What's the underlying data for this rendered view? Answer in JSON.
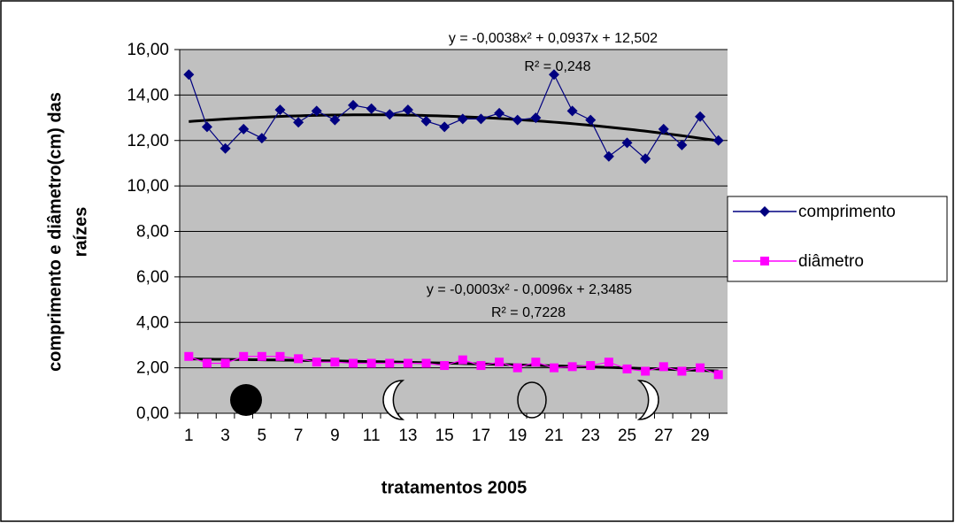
{
  "chart_data": {
    "type": "line",
    "ylabel": [
      "comprimento e diâmetro(cm) das",
      "raízes"
    ],
    "xlabel": "tratamentos 2005",
    "categories": [
      "1",
      null,
      "3",
      null,
      "5",
      null,
      "7",
      null,
      "9",
      null,
      "11",
      null,
      "13",
      null,
      "15",
      null,
      "17",
      null,
      "19",
      null,
      "21",
      null,
      "23",
      null,
      "25",
      null,
      "27",
      null,
      "29",
      null
    ],
    "series": [
      {
        "name": "comprimento",
        "color": "#000080",
        "marker": "diamond",
        "values": [
          14.9,
          12.6,
          11.65,
          12.5,
          12.1,
          13.35,
          12.8,
          13.3,
          12.9,
          13.55,
          13.4,
          13.15,
          13.35,
          12.85,
          12.6,
          12.95,
          12.95,
          13.2,
          12.9,
          13.0,
          14.9,
          13.3,
          12.9,
          11.3,
          11.9,
          11.2,
          12.5,
          11.8,
          13.05,
          12.0
        ]
      },
      {
        "name": "diâmetro",
        "color": "#ff00ff",
        "marker": "square",
        "values": [
          2.5,
          2.2,
          2.2,
          2.5,
          2.5,
          2.5,
          2.4,
          2.25,
          2.25,
          2.2,
          2.2,
          2.2,
          2.2,
          2.2,
          2.1,
          2.35,
          2.1,
          2.25,
          2.0,
          2.25,
          2.0,
          2.05,
          2.1,
          2.25,
          1.95,
          1.85,
          2.05,
          1.85,
          2.0,
          1.7
        ]
      }
    ],
    "trendline": "poly2",
    "annotations": [
      "y = -0,0038x² + 0,0937x + 12,502",
      "R² = 0,248",
      "y = -0,0003x² - 0,0096x + 2,3485",
      "R² = 0,7228"
    ],
    "ylim": [
      0,
      16
    ],
    "yticks": [
      {
        "value": 0,
        "label": "0,00"
      },
      {
        "value": 2,
        "label": "2,00"
      },
      {
        "value": 4,
        "label": "4,00"
      },
      {
        "value": 6,
        "label": "6,00"
      },
      {
        "value": 8,
        "label": "8,00"
      },
      {
        "value": 10,
        "label": "10,00"
      },
      {
        "value": 12,
        "label": "12,00"
      },
      {
        "value": 14,
        "label": "14,00"
      },
      {
        "value": 16,
        "label": "16,00"
      }
    ],
    "grid": true,
    "legend": "right"
  }
}
